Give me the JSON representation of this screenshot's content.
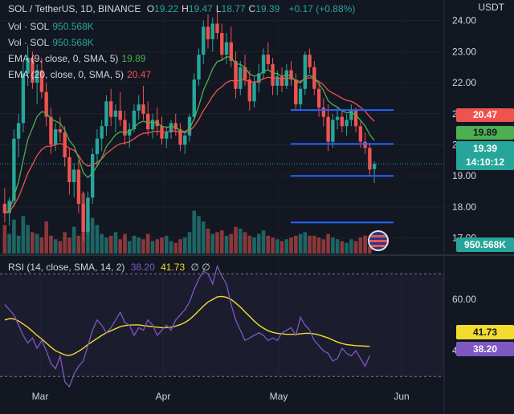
{
  "header": {
    "symbol": "SOL / TetherUS, 1D, BINANCE",
    "ohlc": [
      {
        "k": "O",
        "v": "19.22"
      },
      {
        "k": "H",
        "v": "19.47"
      },
      {
        "k": "L",
        "v": "18.77"
      },
      {
        "k": "C",
        "v": "19.39"
      }
    ],
    "change": "+0.17 (+0.88%)",
    "currency": "USDT"
  },
  "indicators": [
    {
      "label": "Vol · SOL",
      "value": "950.568K",
      "color": "#26a69a"
    },
    {
      "label": "Vol · SOL",
      "value": "950.568K",
      "color": "#26a69a"
    },
    {
      "label": "EMA (9, close, 0, SMA, 5)",
      "value": "19.89",
      "color": "#4caf50"
    },
    {
      "label": "EMA (20, close, 0, SMA, 5)",
      "value": "20.47",
      "color": "#ef5350"
    }
  ],
  "rsi": {
    "label": "RSI (14, close, SMA, 14, 2)",
    "value": "38.20",
    "sma_value": "41.73",
    "extra": "∅ ∅",
    "rsi_color": "#7e57c2",
    "sma_color": "#f2dd2e"
  },
  "tags": {
    "ema20": "20.47",
    "ema9": "19.89",
    "price": "19.39",
    "countdown": "14:10:12",
    "volume": "950.568K",
    "rsi_sma": "41.73",
    "rsi": "38.20"
  },
  "colors": {
    "up": "#26a69a",
    "down": "#ef5350",
    "hline": "#2962ff"
  },
  "chart_data": {
    "type": "candlestick",
    "price_axis": {
      "ticks": [
        "24.00",
        "23.00",
        "22.00",
        "21.00",
        "20.00",
        "19.00",
        "18.00",
        "17.00"
      ],
      "range": [
        16.5,
        24.3
      ]
    },
    "rsi_axis": {
      "ticks": [
        "60.00",
        "40.00"
      ],
      "band": [
        30,
        70
      ],
      "range": [
        26,
        76
      ]
    },
    "time_labels": [
      "Mar",
      "Apr",
      "May",
      "Jun"
    ],
    "horizontal_lines": [
      21.12,
      20.03,
      19.0,
      17.5
    ],
    "candles": [
      [
        18.1,
        18.6,
        17.5,
        17.8
      ],
      [
        17.8,
        18.3,
        17.4,
        18.2
      ],
      [
        18.2,
        20.5,
        18.0,
        20.2
      ],
      [
        20.2,
        21.0,
        19.6,
        20.7
      ],
      [
        20.7,
        22.7,
        20.4,
        22.3
      ],
      [
        22.3,
        23.2,
        21.9,
        22.8
      ],
      [
        22.8,
        23.0,
        21.8,
        22.0
      ],
      [
        22.0,
        22.6,
        21.3,
        22.4
      ],
      [
        22.4,
        22.8,
        21.5,
        21.7
      ],
      [
        21.7,
        22.0,
        20.6,
        20.9
      ],
      [
        20.9,
        21.2,
        19.7,
        20.0
      ],
      [
        20.0,
        20.7,
        19.8,
        20.5
      ],
      [
        20.5,
        20.9,
        20.1,
        20.4
      ],
      [
        20.4,
        20.6,
        19.3,
        19.6
      ],
      [
        19.6,
        19.9,
        18.4,
        18.8
      ],
      [
        18.8,
        19.4,
        18.3,
        19.2
      ],
      [
        19.2,
        19.5,
        17.8,
        18.1
      ],
      [
        18.1,
        18.5,
        16.9,
        17.2
      ],
      [
        17.2,
        18.5,
        17.1,
        18.3
      ],
      [
        18.3,
        19.9,
        18.1,
        19.7
      ],
      [
        19.7,
        20.5,
        19.3,
        20.2
      ],
      [
        20.2,
        20.8,
        19.8,
        20.6
      ],
      [
        20.6,
        21.6,
        20.3,
        21.4
      ],
      [
        21.4,
        21.8,
        20.6,
        20.9
      ],
      [
        20.9,
        21.3,
        20.4,
        21.1
      ],
      [
        21.1,
        21.7,
        20.6,
        20.8
      ],
      [
        20.8,
        21.1,
        20.0,
        20.3
      ],
      [
        20.3,
        20.7,
        19.9,
        20.5
      ],
      [
        20.5,
        21.3,
        20.4,
        21.1
      ],
      [
        21.1,
        21.6,
        20.8,
        21.3
      ],
      [
        21.3,
        21.9,
        20.8,
        21.0
      ],
      [
        21.0,
        21.4,
        20.3,
        20.5
      ],
      [
        20.5,
        21.0,
        20.2,
        20.8
      ],
      [
        20.8,
        21.2,
        20.3,
        20.6
      ],
      [
        20.6,
        20.9,
        20.0,
        20.2
      ],
      [
        20.2,
        20.6,
        19.9,
        20.4
      ],
      [
        20.4,
        20.8,
        20.2,
        20.7
      ],
      [
        20.7,
        21.0,
        20.3,
        20.5
      ],
      [
        20.5,
        20.7,
        19.8,
        20.0
      ],
      [
        20.0,
        20.4,
        19.7,
        20.3
      ],
      [
        20.3,
        21.0,
        20.1,
        20.9
      ],
      [
        20.9,
        22.3,
        20.8,
        22.1
      ],
      [
        22.1,
        23.1,
        21.9,
        22.9
      ],
      [
        22.9,
        24.0,
        22.6,
        23.8
      ],
      [
        23.8,
        24.2,
        23.1,
        23.4
      ],
      [
        23.4,
        24.1,
        23.0,
        23.9
      ],
      [
        23.9,
        24.3,
        23.4,
        23.6
      ],
      [
        23.6,
        23.9,
        22.7,
        22.9
      ],
      [
        22.9,
        23.6,
        22.6,
        23.3
      ],
      [
        23.3,
        23.8,
        22.5,
        22.7
      ],
      [
        22.7,
        23.0,
        21.5,
        21.8
      ],
      [
        21.8,
        22.7,
        21.6,
        22.5
      ],
      [
        22.5,
        22.9,
        21.9,
        22.1
      ],
      [
        22.1,
        22.4,
        21.1,
        21.4
      ],
      [
        21.4,
        22.2,
        21.2,
        22.0
      ],
      [
        22.0,
        22.6,
        21.7,
        22.3
      ],
      [
        22.3,
        23.1,
        22.1,
        22.9
      ],
      [
        22.9,
        23.3,
        22.4,
        22.6
      ],
      [
        22.6,
        22.8,
        21.6,
        21.9
      ],
      [
        21.9,
        22.4,
        21.6,
        22.2
      ],
      [
        22.2,
        22.5,
        21.7,
        21.9
      ],
      [
        21.9,
        22.6,
        21.8,
        22.4
      ],
      [
        22.4,
        22.7,
        21.9,
        22.1
      ],
      [
        22.1,
        22.3,
        21.1,
        21.3
      ],
      [
        21.3,
        21.9,
        21.1,
        21.8
      ],
      [
        21.8,
        23.0,
        21.6,
        22.9
      ],
      [
        22.9,
        23.1,
        22.3,
        22.5
      ],
      [
        22.5,
        22.7,
        21.6,
        21.8
      ],
      [
        21.8,
        22.0,
        20.9,
        21.2
      ],
      [
        21.2,
        21.5,
        20.6,
        20.9
      ],
      [
        20.9,
        21.3,
        19.8,
        20.1
      ],
      [
        20.1,
        21.0,
        19.9,
        20.8
      ],
      [
        20.8,
        21.2,
        20.5,
        20.9
      ],
      [
        20.9,
        21.1,
        20.4,
        20.6
      ],
      [
        20.6,
        21.0,
        20.3,
        20.8
      ],
      [
        20.8,
        21.3,
        20.6,
        21.1
      ],
      [
        21.1,
        21.2,
        20.4,
        20.6
      ],
      [
        20.6,
        20.8,
        19.9,
        20.1
      ],
      [
        20.1,
        20.4,
        19.7,
        19.9
      ],
      [
        19.9,
        20.0,
        19.0,
        19.2
      ],
      [
        19.22,
        19.47,
        18.77,
        19.39
      ]
    ],
    "volume": [
      0.8,
      0.55,
      0.95,
      0.5,
      1.05,
      0.8,
      0.6,
      0.55,
      0.45,
      0.9,
      0.5,
      0.4,
      0.35,
      0.6,
      0.45,
      0.75,
      0.5,
      1.7,
      0.85,
      1.0,
      0.8,
      0.55,
      0.45,
      0.5,
      0.6,
      0.4,
      0.55,
      0.35,
      0.5,
      0.45,
      0.4,
      0.55,
      0.35,
      0.4,
      0.45,
      0.5,
      0.35,
      0.3,
      0.4,
      0.45,
      0.6,
      1.2,
      1.05,
      0.9,
      0.7,
      0.55,
      0.6,
      0.65,
      0.5,
      0.55,
      0.75,
      0.7,
      0.6,
      0.5,
      0.45,
      0.55,
      0.65,
      0.5,
      0.45,
      0.4,
      0.35,
      0.4,
      0.45,
      0.5,
      0.55,
      0.6,
      0.5,
      0.5,
      0.45,
      0.4,
      0.55,
      0.45,
      0.4,
      0.35,
      0.3,
      0.4,
      0.35,
      0.45,
      0.5,
      0.2
    ],
    "rsi": [
      58,
      56,
      54,
      50,
      46,
      43,
      45,
      41,
      44,
      40,
      35,
      33,
      38,
      28,
      26,
      31,
      34,
      36,
      42,
      48,
      52,
      50,
      47,
      49,
      52,
      55,
      51,
      50,
      46,
      49,
      48,
      52,
      50,
      46,
      48,
      50,
      48,
      52,
      54,
      56,
      59,
      64,
      68,
      71,
      70,
      66,
      73,
      69,
      66,
      58,
      52,
      48,
      44,
      45,
      46,
      47,
      46,
      44,
      45,
      44,
      47,
      48,
      49,
      46,
      53,
      50,
      48,
      44,
      42,
      40,
      39,
      36,
      37,
      41,
      39,
      38,
      40,
      37,
      34,
      38.2
    ],
    "rsi_sma": [
      52,
      52.5,
      52.4,
      51.6,
      50.4,
      49.2,
      47.6,
      46,
      44.6,
      43,
      41.4,
      40,
      39.2,
      38.4,
      38.2,
      38.8,
      39.8,
      41,
      42.4,
      43.6,
      44.8,
      46,
      47,
      47.8,
      48.6,
      49.4,
      49.8,
      50,
      50.1,
      50.1,
      49.8,
      49.6,
      49.4,
      49.2,
      49,
      49,
      49.2,
      49.6,
      50.2,
      51,
      52.2,
      53.8,
      55.6,
      57.4,
      59,
      60,
      61,
      61.2,
      60.8,
      60,
      58.6,
      57,
      55.2,
      53.4,
      51.6,
      50,
      48.8,
      47.8,
      47.2,
      46.8,
      46.6,
      46.4,
      46.4,
      46.4,
      46.6,
      46.8,
      46.8,
      46.6,
      46.2,
      45.6,
      45,
      44.2,
      43.4,
      42.8,
      42.4,
      42.2,
      42,
      41.9,
      41.8,
      41.73
    ]
  }
}
